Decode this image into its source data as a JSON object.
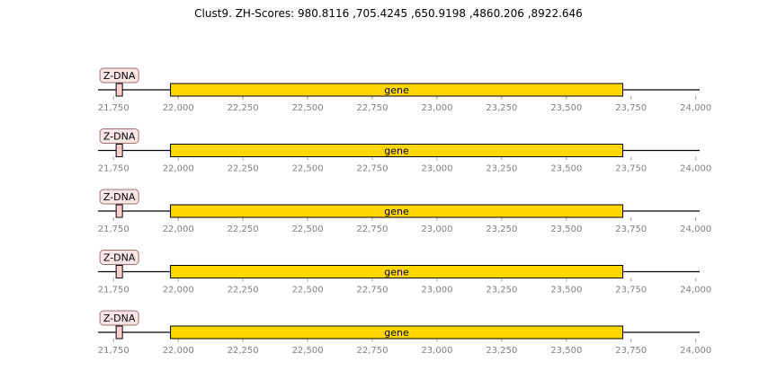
{
  "chart_data": {
    "type": "gene-track",
    "title": "Clust9. ZH-Scores: 980.8116 ,705.4245 ,650.9198 ,4860.206 ,8922.646",
    "x_range": [
      21690,
      24015
    ],
    "ticks": [
      21750,
      22000,
      22250,
      22500,
      22750,
      23000,
      23250,
      23500,
      23750,
      24000
    ],
    "tick_labels": [
      "21,750",
      "22,000",
      "22,250",
      "22,500",
      "22,750",
      "23,000",
      "23,250",
      "23,500",
      "23,750",
      "24,000"
    ],
    "colors": {
      "gene": "#ffd700",
      "zdna": "#ffcccc",
      "zdna_label_bg": "#fbe6e6",
      "backbone": "#000000",
      "tick_text": "#808080"
    },
    "tracks": [
      {
        "features": [
          {
            "label": "Z-DNA",
            "kind": "zdna",
            "start": 21760,
            "end": 21784
          },
          {
            "label": "gene",
            "kind": "gene",
            "start": 21970,
            "end": 23718
          }
        ]
      },
      {
        "features": [
          {
            "label": "Z-DNA",
            "kind": "zdna",
            "start": 21760,
            "end": 21784
          },
          {
            "label": "gene",
            "kind": "gene",
            "start": 21970,
            "end": 23718
          }
        ]
      },
      {
        "features": [
          {
            "label": "Z-DNA",
            "kind": "zdna",
            "start": 21760,
            "end": 21784
          },
          {
            "label": "gene",
            "kind": "gene",
            "start": 21970,
            "end": 23718
          }
        ]
      },
      {
        "features": [
          {
            "label": "Z-DNA",
            "kind": "zdna",
            "start": 21760,
            "end": 21784
          },
          {
            "label": "gene",
            "kind": "gene",
            "start": 21970,
            "end": 23718
          }
        ]
      },
      {
        "features": [
          {
            "label": "Z-DNA",
            "kind": "zdna",
            "start": 21760,
            "end": 21784
          },
          {
            "label": "gene",
            "kind": "gene",
            "start": 21970,
            "end": 23718
          }
        ]
      }
    ]
  }
}
